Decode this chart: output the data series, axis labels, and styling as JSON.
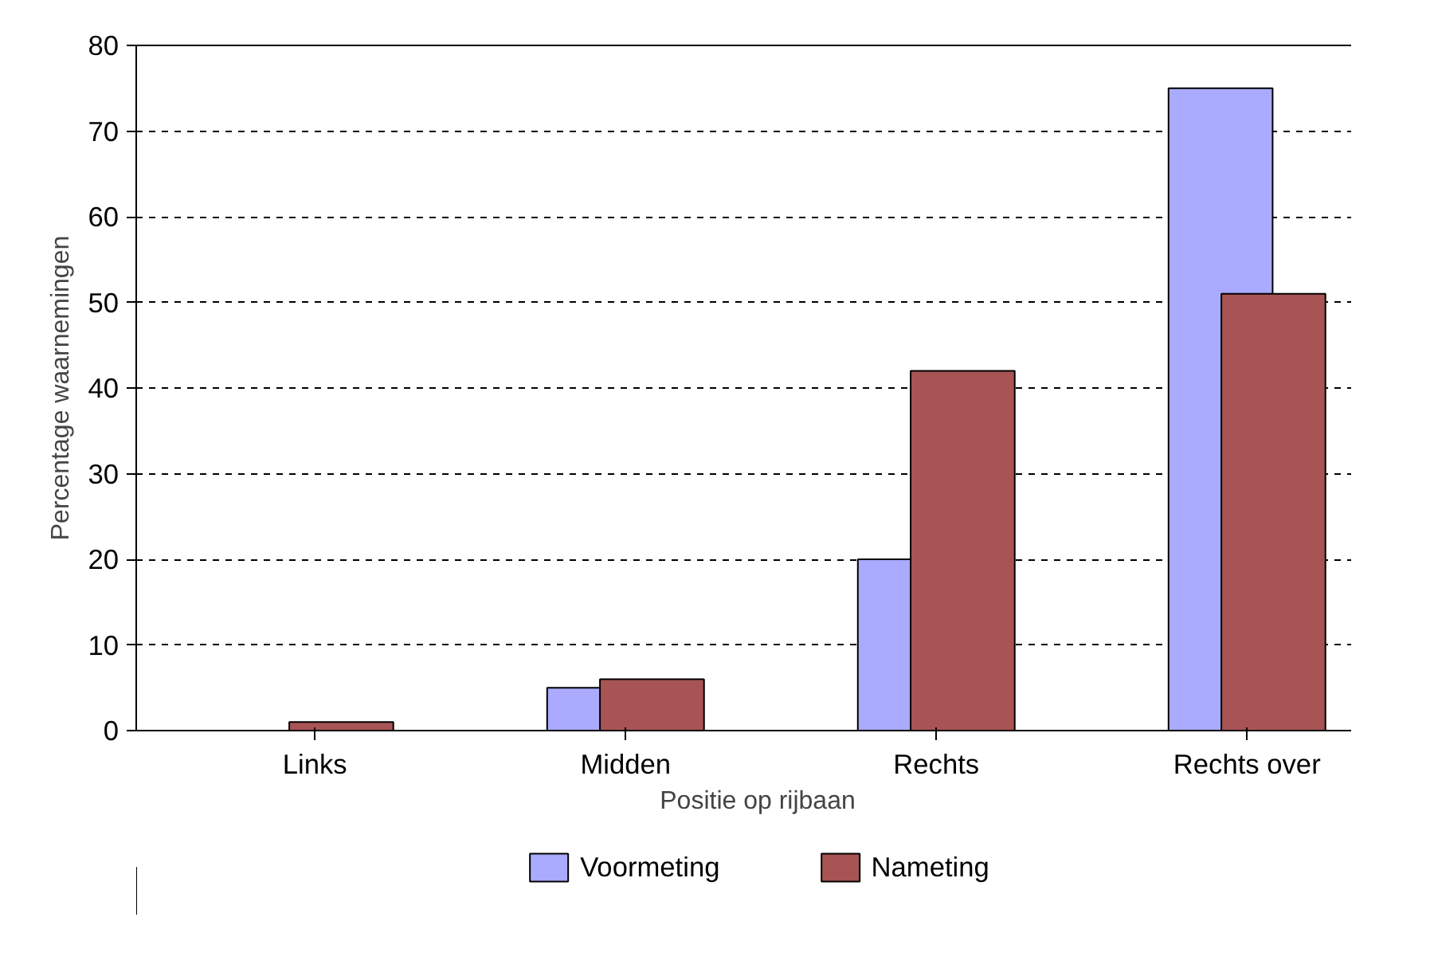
{
  "chart_data": {
    "type": "bar",
    "xlabel": "Positie op rijbaan",
    "ylabel": "Percentage waarnemingen",
    "categories": [
      "Links",
      "Midden",
      "Rechts",
      "Rechts over"
    ],
    "series": [
      {
        "name": "Voormeting",
        "color": "#aaaaff",
        "values": [
          0,
          5,
          20,
          75
        ]
      },
      {
        "name": "Nameting",
        "color": "#a85454",
        "values": [
          1,
          6,
          42,
          51
        ]
      }
    ],
    "ylim": [
      0,
      80
    ],
    "yticks": [
      0,
      10,
      20,
      30,
      40,
      50,
      60,
      70,
      80
    ],
    "grid": "y",
    "legend": "bottom"
  }
}
